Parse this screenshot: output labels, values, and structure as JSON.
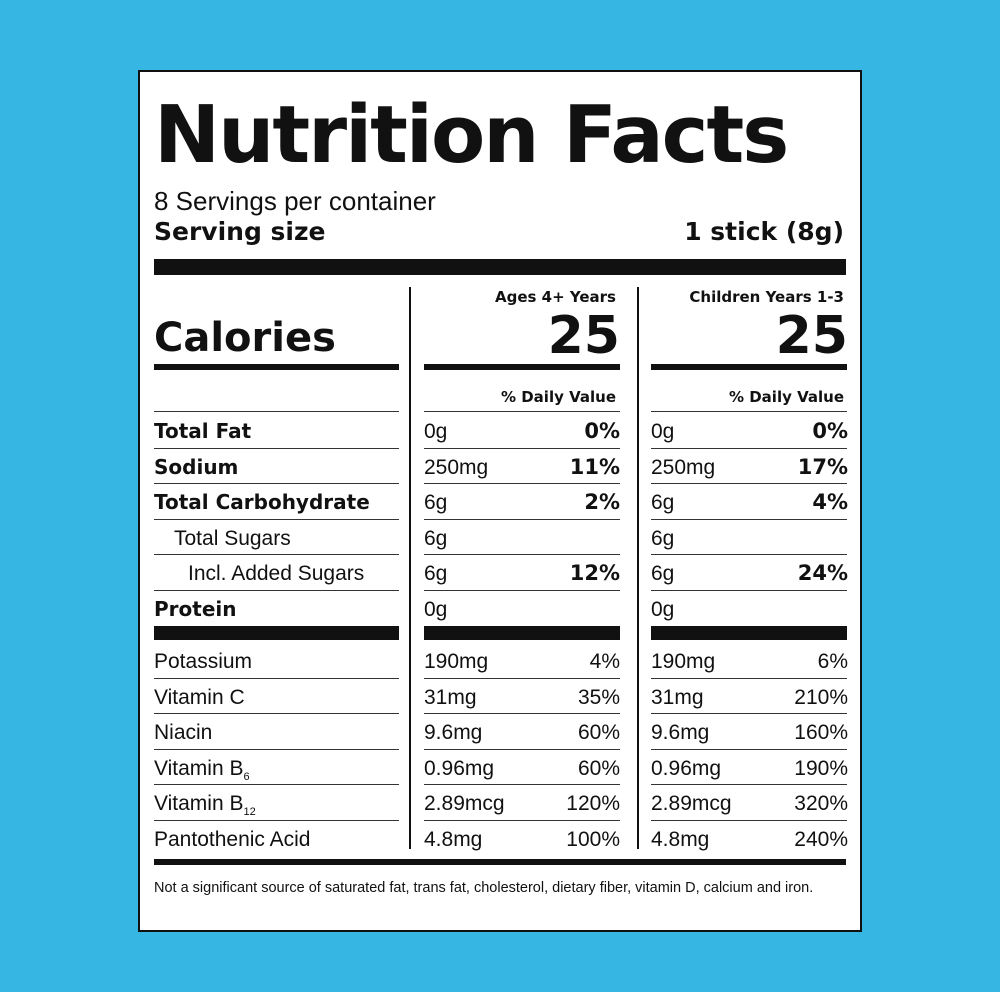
{
  "title": "Nutrition Facts",
  "servings_per_container": "8 Servings per container",
  "serving_size_label": "Serving size",
  "serving_size_value": "1 stick (8g)",
  "calories_label": "Calories",
  "columns": [
    {
      "header": "Ages 4+ Years",
      "calories": "25",
      "dv_header": "% Daily Value"
    },
    {
      "header": "Children Years 1-3",
      "calories": "25",
      "dv_header": "% Daily Value"
    }
  ],
  "nutrients": [
    {
      "name": "Total Fat",
      "a1": "0g",
      "p1": "0%",
      "a2": "0g",
      "p2": "0%"
    },
    {
      "name": "Sodium",
      "a1": "250mg",
      "p1": "11%",
      "a2": "250mg",
      "p2": "17%"
    },
    {
      "name": "Total Carbohydrate",
      "a1": "6g",
      "p1": "2%",
      "a2": "6g",
      "p2": "4%"
    },
    {
      "name": "Total Sugars",
      "a1": "6g",
      "p1": "",
      "a2": "6g",
      "p2": ""
    },
    {
      "name": "Incl. Added Sugars",
      "a1": "6g",
      "p1": "12%",
      "a2": "6g",
      "p2": "24%"
    },
    {
      "name": "Protein",
      "a1": "0g",
      "p1": "",
      "a2": "0g",
      "p2": ""
    }
  ],
  "vitamins": [
    {
      "name": "Potassium",
      "a1": "190mg",
      "p1": "4%",
      "a2": "190mg",
      "p2": "6%"
    },
    {
      "name": "Vitamin C",
      "a1": "31mg",
      "p1": "35%",
      "a2": "31mg",
      "p2": "210%"
    },
    {
      "name": "Niacin",
      "a1": "9.6mg",
      "p1": "60%",
      "a2": "9.6mg",
      "p2": "160%"
    },
    {
      "name": "Vitamin B",
      "sub": "6",
      "a1": "0.96mg",
      "p1": "60%",
      "a2": "0.96mg",
      "p2": "190%"
    },
    {
      "name": "Vitamin B",
      "sub": "12",
      "a1": "2.89mcg",
      "p1": "120%",
      "a2": "2.89mcg",
      "p2": "320%"
    },
    {
      "name": "Pantothenic Acid",
      "a1": "4.8mg",
      "p1": "100%",
      "a2": "4.8mg",
      "p2": "240%"
    }
  ],
  "footnote": "Not a significant source of saturated fat, trans fat, cholesterol, dietary fiber, vitamin D, calcium and iron.",
  "colors": {
    "background": "#35b6e3",
    "ink": "#111111",
    "panel": "#ffffff"
  }
}
